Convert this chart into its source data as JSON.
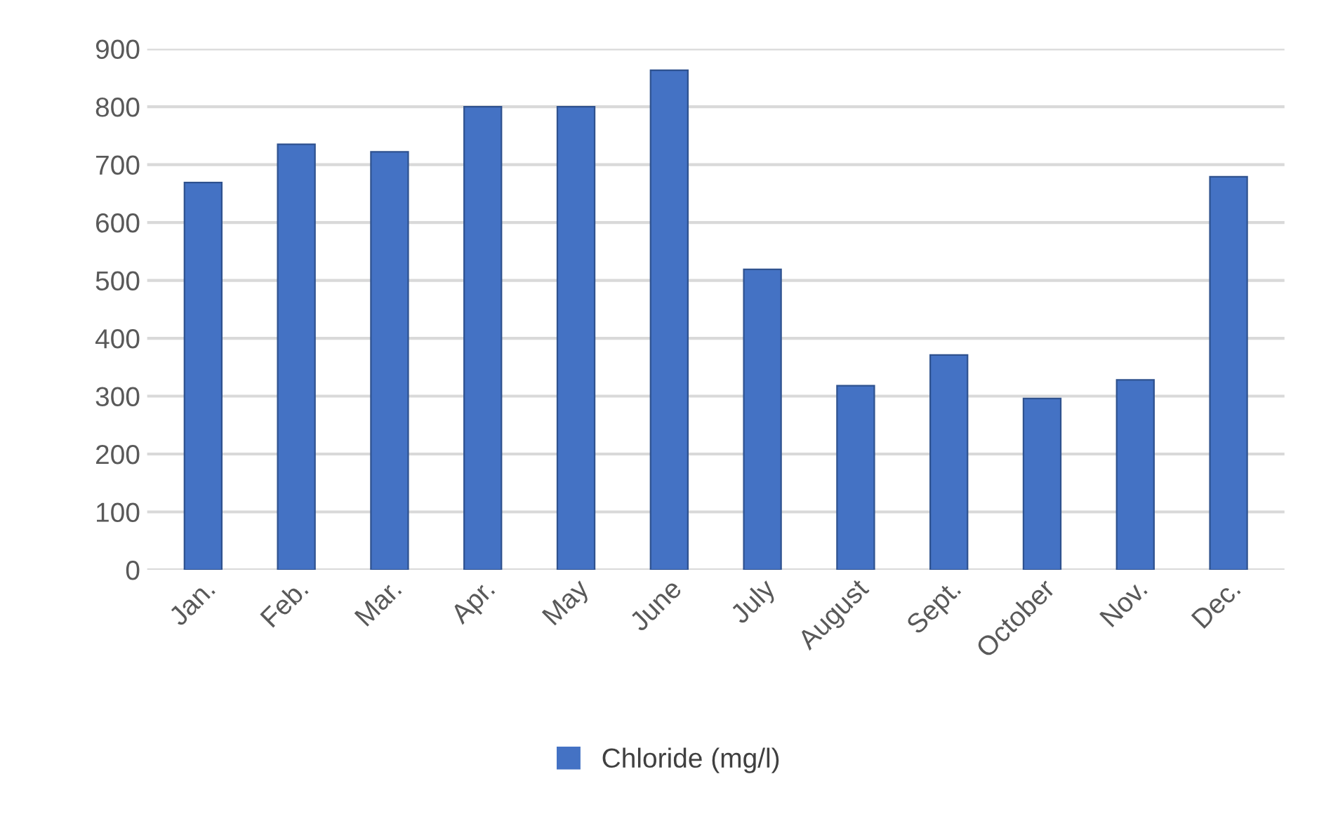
{
  "chart_data": {
    "type": "bar",
    "categories": [
      "Jan.",
      "Feb.",
      "Mar.",
      "Apr.",
      "May",
      "June",
      "July",
      "August",
      "Sept.",
      "October",
      "Nov.",
      "Dec."
    ],
    "series": [
      {
        "name": "Chloride (mg/l)",
        "color": "#4472c4",
        "values": [
          669,
          735,
          722,
          800,
          800,
          863,
          519,
          318,
          371,
          296,
          328,
          679
        ]
      }
    ],
    "ylim": [
      0,
      900
    ],
    "yticks": [
      0,
      100,
      200,
      300,
      400,
      500,
      600,
      700,
      800,
      900
    ],
    "grid": "y",
    "legend": "bottom"
  }
}
